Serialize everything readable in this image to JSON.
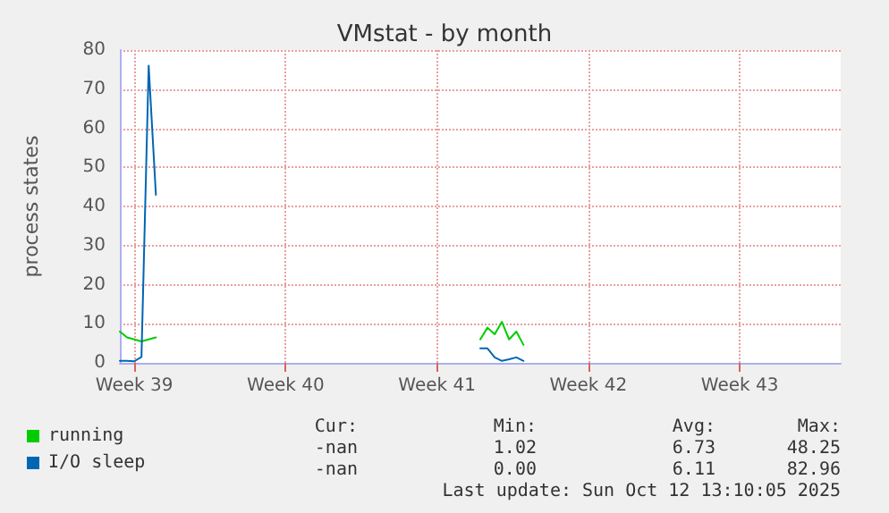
{
  "chart_data": {
    "type": "line",
    "title": "VMstat - by month",
    "ylabel": "process states",
    "categories": [
      null,
      null,
      "Week 39",
      null,
      null,
      null,
      null,
      null,
      null,
      null,
      null,
      null,
      null,
      null,
      null,
      null,
      null,
      null,
      null,
      null,
      null,
      null,
      null,
      "Week 40",
      null,
      null,
      null,
      null,
      null,
      null,
      null,
      null,
      null,
      null,
      null,
      null,
      null,
      null,
      null,
      null,
      null,
      null,
      null,
      null,
      "Week 41",
      null,
      null,
      null,
      null,
      null,
      null,
      null,
      null,
      null,
      null,
      null,
      null,
      null,
      null,
      null,
      null,
      null,
      null,
      null,
      null,
      "Week 42",
      null,
      null,
      null,
      null,
      null,
      null,
      null,
      null,
      null,
      null,
      null,
      null,
      null,
      null,
      null,
      null,
      null,
      null,
      null,
      null,
      "Week 43",
      null,
      null,
      null,
      null,
      null,
      null,
      null,
      null,
      null,
      null,
      null,
      null,
      null,
      null
    ],
    "ylim": [
      0,
      80
    ],
    "yticks": [
      0,
      10,
      20,
      30,
      40,
      50,
      60,
      70,
      80
    ],
    "grid": true,
    "legend": "bottom left",
    "marker": "none",
    "line_style": "solid",
    "series": [
      {
        "name": "running",
        "color": "#00cc00",
        "values": [
          8,
          6.5,
          6,
          5.5,
          6,
          6.5,
          null,
          null,
          null,
          null,
          null,
          null,
          null,
          null,
          null,
          null,
          null,
          null,
          null,
          null,
          null,
          null,
          null,
          null,
          null,
          null,
          null,
          null,
          null,
          null,
          null,
          null,
          null,
          null,
          null,
          null,
          null,
          null,
          null,
          null,
          null,
          null,
          null,
          null,
          null,
          null,
          null,
          null,
          null,
          null,
          6,
          9,
          7.3,
          10.5,
          6,
          8,
          4.6,
          null,
          null,
          null,
          null,
          null,
          null,
          null,
          null,
          null,
          null,
          null,
          null,
          null,
          null,
          null,
          null,
          null,
          null,
          null,
          null,
          null,
          null,
          null,
          null,
          null,
          null,
          null,
          null,
          null,
          null,
          null,
          null,
          null,
          null,
          null,
          null,
          null,
          null,
          null,
          null,
          null,
          null,
          null,
          null
        ]
      },
      {
        "name": "I/O sleep",
        "color": "#0066b3",
        "values": [
          0.5,
          0.5,
          0.4,
          1.5,
          76,
          43,
          null,
          null,
          null,
          null,
          null,
          null,
          null,
          null,
          null,
          null,
          null,
          null,
          null,
          null,
          null,
          null,
          null,
          null,
          null,
          null,
          null,
          null,
          null,
          null,
          null,
          null,
          null,
          null,
          null,
          null,
          null,
          null,
          null,
          null,
          null,
          null,
          null,
          null,
          null,
          null,
          null,
          null,
          null,
          null,
          3.7,
          3.7,
          1.4,
          0.5,
          0.9,
          1.4,
          0.5,
          null,
          null,
          null,
          null,
          null,
          null,
          null,
          null,
          null,
          null,
          null,
          null,
          null,
          null,
          null,
          null,
          null,
          null,
          null,
          null,
          null,
          null,
          null,
          null,
          null,
          null,
          null,
          null,
          null,
          null,
          null,
          null,
          null,
          null,
          null,
          null,
          null,
          null,
          null,
          null,
          null,
          null,
          null,
          null
        ]
      }
    ],
    "annotations": [
      "Cur:",
      "Min:",
      "Avg:",
      "Max:",
      "-nan",
      "1.02",
      "6.73",
      "48.25",
      "-nan",
      "0.00",
      "6.11",
      "82.96",
      "Last update: Sun Oct 12 13:10:05 2025"
    ]
  }
}
